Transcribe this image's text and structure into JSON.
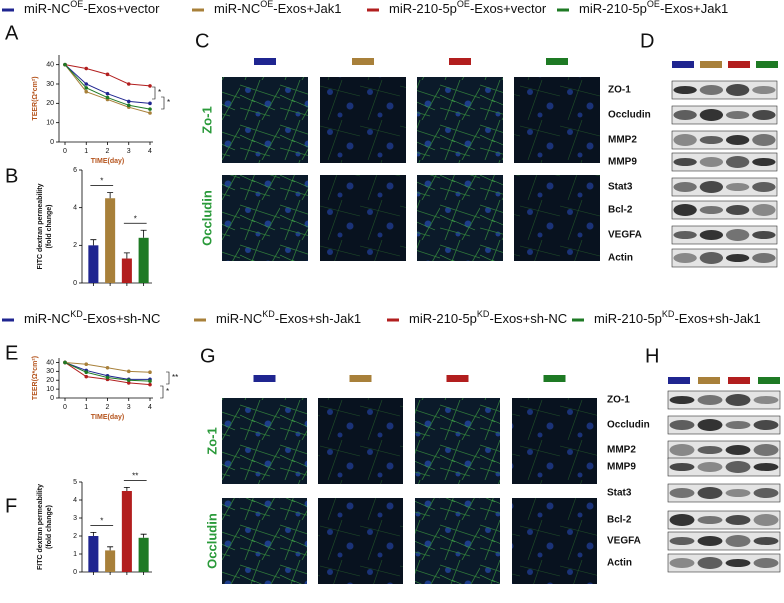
{
  "legends": [
    {
      "entries": [
        {
          "pre": "miR-NC",
          "sup": "OE",
          "post": "-Exos+vector",
          "color": "#1f2590"
        },
        {
          "pre": "miR-NC",
          "sup": "OE",
          "post": "-Exos+Jak1",
          "color": "#a8803a"
        },
        {
          "pre": "miR-210-5p",
          "sup": "OE",
          "post": "-Exos+vector",
          "color": "#b21e1e"
        },
        {
          "pre": "miR-210-5p",
          "sup": "OE",
          "post": "-Exos+Jak1",
          "color": "#1e7a24"
        }
      ]
    },
    {
      "entries": [
        {
          "pre": "miR-NC",
          "sup": "KD",
          "post": "-Exos+sh-NC",
          "color": "#1f2590"
        },
        {
          "pre": "miR-NC",
          "sup": "KD",
          "post": "-Exos+sh-Jak1",
          "color": "#a8803a"
        },
        {
          "pre": "miR-210-5p",
          "sup": "KD",
          "post": "-Exos+sh-NC",
          "color": "#b21e1e"
        },
        {
          "pre": "miR-210-5p",
          "sup": "KD",
          "post": "-Exos+sh-Jak1",
          "color": "#1e7a24"
        }
      ]
    }
  ],
  "chart_data": [
    {
      "type": "line",
      "panel": "A",
      "ylabel": "TEER(Ω*cm²)",
      "xlabel": "TIME(day)",
      "x": [
        0,
        1,
        2,
        3,
        4
      ],
      "xlim": [
        0,
        4
      ],
      "xticks": [
        0,
        1,
        2,
        3,
        4
      ],
      "ylim": [
        0,
        45
      ],
      "yticks": [
        0,
        10,
        20,
        30,
        40
      ],
      "series": [
        {
          "color": "#1f2590",
          "values": [
            40,
            30,
            25,
            21,
            20
          ]
        },
        {
          "color": "#a8803a",
          "values": [
            40,
            26,
            22,
            18,
            15
          ]
        },
        {
          "color": "#b21e1e",
          "values": [
            40,
            38,
            35,
            30,
            29
          ]
        },
        {
          "color": "#1e7a24",
          "values": [
            40,
            28,
            23,
            19,
            17
          ]
        }
      ],
      "annotations": [
        "*",
        "*"
      ]
    },
    {
      "type": "bar",
      "panel": "B",
      "ylabel": [
        "FITC dextran permeability",
        "(fold change)"
      ],
      "categories": [
        null,
        null,
        null,
        null
      ],
      "values": [
        2.0,
        4.5,
        1.3,
        2.4
      ],
      "errors": [
        0.3,
        0.3,
        0.3,
        0.4
      ],
      "colors": [
        "#1f2590",
        "#a8803a",
        "#b21e1e",
        "#1e7a24"
      ],
      "ylim": [
        0,
        6
      ],
      "yticks": [
        0,
        2,
        4,
        6
      ],
      "annotations": [
        "*",
        "*"
      ]
    },
    {
      "type": "line",
      "panel": "E",
      "ylabel": "TEER(Ω*cm²)",
      "xlabel": "TIME(day)",
      "x": [
        0,
        1,
        2,
        3,
        4
      ],
      "xlim": [
        0,
        4
      ],
      "xticks": [
        0,
        1,
        2,
        3,
        4
      ],
      "ylim": [
        0,
        45
      ],
      "yticks": [
        0,
        10,
        20,
        30,
        40
      ],
      "series": [
        {
          "color": "#1f2590",
          "values": [
            40,
            31,
            25,
            21,
            21
          ]
        },
        {
          "color": "#a8803a",
          "values": [
            40,
            38,
            34,
            30,
            29
          ]
        },
        {
          "color": "#b21e1e",
          "values": [
            40,
            24,
            21,
            17,
            15
          ]
        },
        {
          "color": "#1e7a24",
          "values": [
            40,
            29,
            23,
            20,
            19
          ]
        }
      ],
      "annotations": [
        "**",
        "*"
      ]
    },
    {
      "type": "bar",
      "panel": "F",
      "ylabel": [
        "FITC dextran permeability",
        "(fold change)"
      ],
      "categories": [
        null,
        null,
        null,
        null
      ],
      "values": [
        2.0,
        1.2,
        4.5,
        1.9
      ],
      "errors": [
        0.2,
        0.2,
        0.2,
        0.2
      ],
      "colors": [
        "#1f2590",
        "#a8803a",
        "#b21e1e",
        "#1e7a24"
      ],
      "ylim": [
        0,
        5
      ],
      "yticks": [
        0,
        1,
        2,
        3,
        4,
        5
      ],
      "annotations": [
        "*",
        "**"
      ]
    }
  ],
  "images": [
    {
      "panel": "C",
      "markers": [
        "#1f2590",
        "#a8803a",
        "#b21e1e",
        "#1e7a24"
      ],
      "rows": [
        "Zo-1",
        "Occludin"
      ]
    },
    {
      "panel": "G",
      "markers": [
        "#1f2590",
        "#a8803a",
        "#b21e1e",
        "#1e7a24"
      ],
      "rows": [
        "Zo-1",
        "Occludin"
      ]
    }
  ],
  "blots": [
    {
      "panel": "D",
      "markers": [
        "#1f2590",
        "#a8803a",
        "#b21e1e",
        "#1e7a24"
      ],
      "rows": [
        "ZO-1",
        "Occludin",
        "MMP2",
        "MMP9",
        "Stat3",
        "Bcl-2",
        "VEGFA",
        "Actin"
      ]
    },
    {
      "panel": "H",
      "markers": [
        "#1f2590",
        "#a8803a",
        "#b21e1e",
        "#1e7a24"
      ],
      "rows": [
        "ZO-1",
        "Occludin",
        "MMP2",
        "MMP9",
        "Stat3",
        "Bcl-2",
        "VEGFA",
        "Actin"
      ]
    }
  ]
}
